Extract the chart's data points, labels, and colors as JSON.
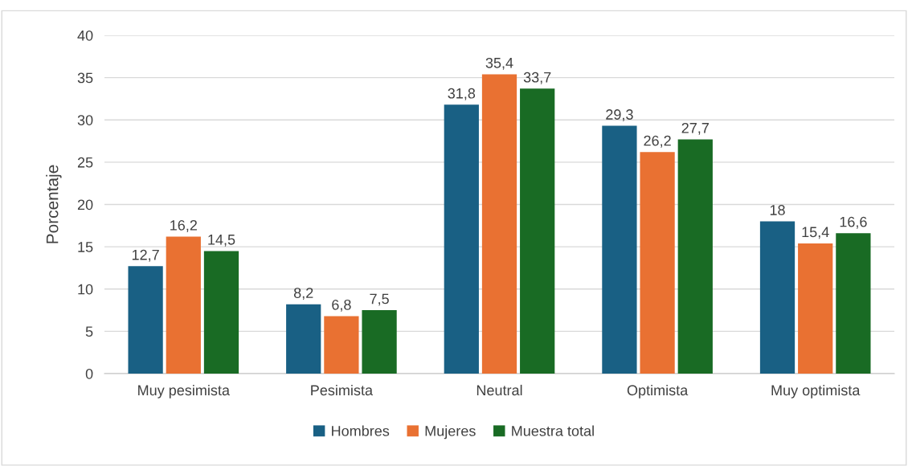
{
  "chart_data": {
    "type": "bar",
    "ylabel": "Porcentaje",
    "categories": [
      "Muy pesimista",
      "Pesimista",
      "Neutral",
      "Optimista",
      "Muy optimista"
    ],
    "series": [
      {
        "name": "Hombres",
        "color": "#196084",
        "values": [
          12.7,
          8.2,
          31.8,
          29.3,
          18
        ],
        "value_labels": [
          "12,7",
          "8,2",
          "31,8",
          "29,3",
          "18"
        ]
      },
      {
        "name": "Mujeres",
        "color": "#e97132",
        "values": [
          16.2,
          6.8,
          35.4,
          26.2,
          15.4
        ],
        "value_labels": [
          "16,2",
          "6,8",
          "35,4",
          "26,2",
          "15,4"
        ]
      },
      {
        "name": "Muestra total",
        "color": "#196b24",
        "values": [
          14.5,
          7.5,
          33.7,
          27.7,
          16.6
        ],
        "value_labels": [
          "14,5",
          "7,5",
          "33,7",
          "27,7",
          "16,6"
        ]
      }
    ],
    "ylim": [
      0,
      40
    ],
    "yticks": [
      0,
      5,
      10,
      15,
      20,
      25,
      30,
      35,
      40
    ],
    "grid": "y",
    "legend": "bottom"
  }
}
